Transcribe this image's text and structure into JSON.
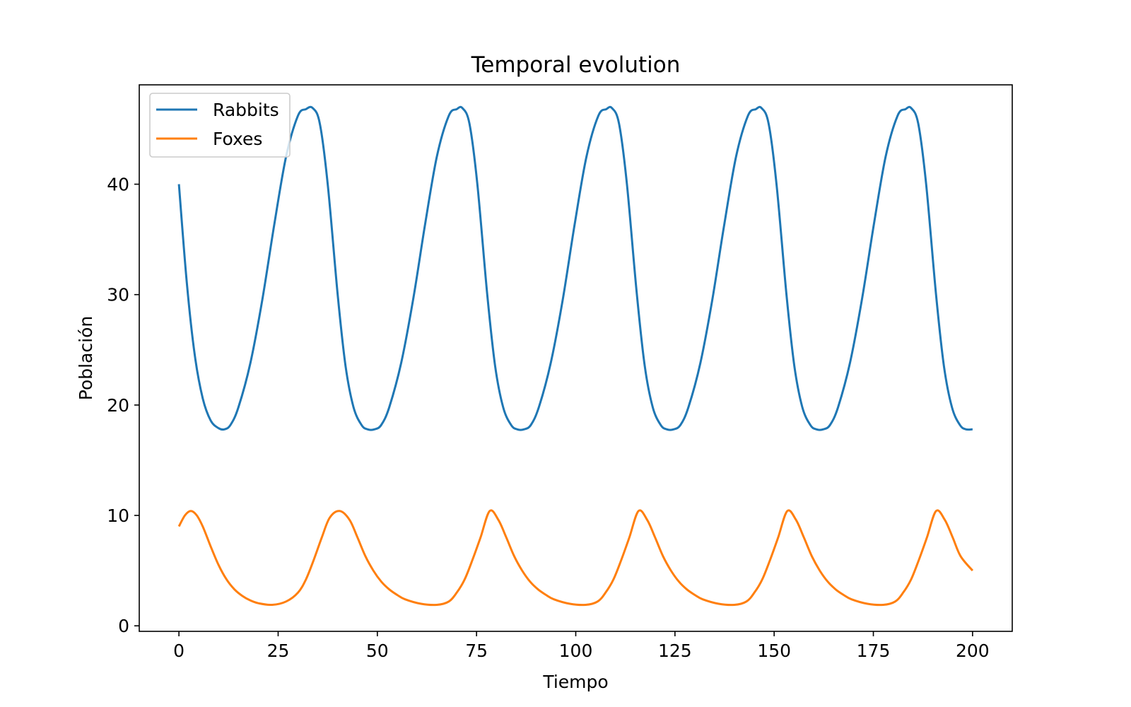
{
  "chart_data": {
    "type": "line",
    "title": "Temporal evolution",
    "xlabel": "Tiempo",
    "ylabel": "Población",
    "xlim": [
      -10,
      210
    ],
    "ylim": [
      -0.5,
      49
    ],
    "xticks": [
      0,
      25,
      50,
      75,
      100,
      125,
      150,
      175,
      200
    ],
    "yticks": [
      0,
      10,
      20,
      30,
      40
    ],
    "grid": false,
    "legend_position": "top-left",
    "series": [
      {
        "name": "Rabbits",
        "color": "#1f77b4",
        "x": [
          0,
          2,
          4,
          6,
          8,
          10,
          11.5,
          13,
          15,
          18,
          21,
          24,
          27,
          30,
          32,
          33.7,
          35.5,
          37.5,
          40,
          42,
          44,
          46,
          47.5,
          49.3,
          51,
          53,
          56,
          59,
          62,
          65,
          68,
          70,
          71.4,
          73.2,
          75.2,
          77.7,
          79.7,
          81.7,
          83.7,
          85.2,
          87,
          88.7,
          90.7,
          93.7,
          96.7,
          99.7,
          102.7,
          105.7,
          107.7,
          109.1,
          110.9,
          112.9,
          115.4,
          117.4,
          119.4,
          121.4,
          122.9,
          124.7,
          126.4,
          128.4,
          131.4,
          134.4,
          137.4,
          140.4,
          143.4,
          145.4,
          146.8,
          148.6,
          150.6,
          153.1,
          155.1,
          157.1,
          159.1,
          160.6,
          162.4,
          164.1,
          166.1,
          169.1,
          172.1,
          175.1,
          178.1,
          181.1,
          183.1,
          184.5,
          186.3,
          188.3,
          190.8,
          192.8,
          194.8,
          196.8,
          198.3,
          200
        ],
        "y": [
          40,
          31,
          24.5,
          20.6,
          18.6,
          17.9,
          17.8,
          18.2,
          19.8,
          23.8,
          29.5,
          36.3,
          42.5,
          46.2,
          46.8,
          46.9,
          45.5,
          40,
          30,
          23.5,
          19.8,
          18.2,
          17.8,
          17.8,
          18.2,
          19.8,
          23.8,
          29.5,
          36.3,
          42.5,
          46.2,
          46.8,
          46.9,
          45.5,
          40,
          30,
          23.5,
          19.8,
          18.2,
          17.8,
          17.8,
          18.2,
          19.8,
          23.8,
          29.5,
          36.3,
          42.5,
          46.2,
          46.8,
          46.9,
          45.5,
          40,
          30,
          23.5,
          19.8,
          18.2,
          17.8,
          17.8,
          18.2,
          19.8,
          23.8,
          29.5,
          36.3,
          42.5,
          46.2,
          46.8,
          46.9,
          45.5,
          40,
          30,
          23.5,
          19.8,
          18.2,
          17.8,
          17.8,
          18.2,
          19.8,
          23.8,
          29.5,
          36.3,
          42.5,
          46.2,
          46.8,
          46.9,
          45.5,
          40,
          30,
          23.5,
          19.8,
          18.2,
          17.8,
          17.8
        ]
      },
      {
        "name": "Foxes",
        "color": "#ff7f0e",
        "x": [
          0,
          1.5,
          3,
          4.5,
          6,
          8,
          10,
          12,
          14,
          16,
          18,
          20,
          23.5,
          27,
          30,
          32,
          34,
          36,
          38,
          40.5,
          43,
          45,
          47,
          49,
          51,
          53,
          55,
          57,
          61,
          65,
          68,
          70,
          72,
          74,
          76,
          78.3,
          80.5,
          82.5,
          84.5,
          86.5,
          88.5,
          90.5,
          92.5,
          94.5,
          98.5,
          102.5,
          105.5,
          107.5,
          109.5,
          111.5,
          113.5,
          115.8,
          118,
          120,
          122,
          124,
          126,
          128,
          130,
          132,
          136,
          140,
          143,
          145,
          147,
          149,
          151,
          153.3,
          155.5,
          157.5,
          159.5,
          161.5,
          163.5,
          165.5,
          167.5,
          169.5,
          173.5,
          177.5,
          180.5,
          182.5,
          184.5,
          186.5,
          188.5,
          190.8,
          193,
          195,
          197,
          200
        ],
        "y": [
          9,
          10,
          10.4,
          10,
          9,
          7.2,
          5.5,
          4.2,
          3.3,
          2.7,
          2.3,
          2.05,
          1.9,
          2.2,
          3,
          4.2,
          6,
          8,
          9.8,
          10.4,
          9.6,
          8,
          6.3,
          5,
          4,
          3.3,
          2.8,
          2.4,
          2,
          1.9,
          2.2,
          3,
          4.2,
          6,
          8,
          10.4,
          9.6,
          8,
          6.3,
          5,
          4,
          3.3,
          2.8,
          2.4,
          2,
          1.9,
          2.2,
          3,
          4.2,
          6,
          8,
          10.4,
          9.6,
          8,
          6.3,
          5,
          4,
          3.3,
          2.8,
          2.4,
          2,
          1.9,
          2.2,
          3,
          4.2,
          6,
          8,
          10.4,
          9.6,
          8,
          6.3,
          5,
          4,
          3.3,
          2.8,
          2.4,
          2,
          1.9,
          2.2,
          3,
          4.2,
          6,
          8,
          10.4,
          9.6,
          8,
          6.3,
          5
        ]
      }
    ]
  }
}
